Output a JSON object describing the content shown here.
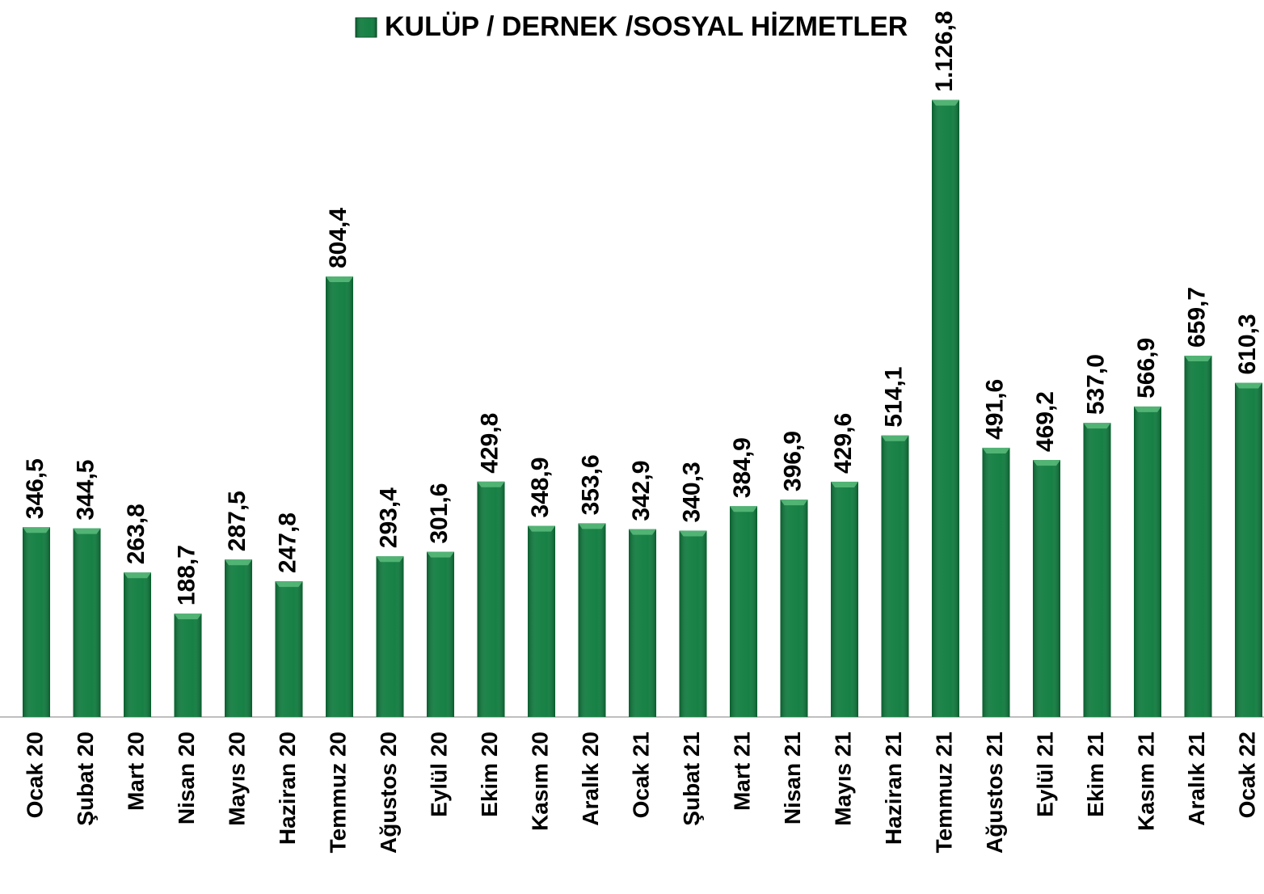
{
  "chart_data": {
    "type": "bar",
    "categories": [
      "Ocak 20",
      "Şubat 20",
      "Mart 20",
      "Nisan 20",
      "Mayıs 20",
      "Haziran 20",
      "Temmuz 20",
      "Ağustos 20",
      "Eylül 20",
      "Ekim 20",
      "Kasım 20",
      "Aralık 20",
      "Ocak 21",
      "Şubat 21",
      "Mart 21",
      "Nisan 21",
      "Mayıs 21",
      "Haziran 21",
      "Temmuz 21",
      "Ağustos 21",
      "Eylül 21",
      "Ekim 21",
      "Kasım 21",
      "Aralık 21",
      "Ocak 22"
    ],
    "series": [
      {
        "name": "KULÜP / DERNEK /SOSYAL HİZMETLER",
        "color": "#0b7a3b",
        "values": [
          346.5,
          344.5,
          263.8,
          188.7,
          287.5,
          247.8,
          804.4,
          293.4,
          301.6,
          429.8,
          348.9,
          353.6,
          342.9,
          340.3,
          384.9,
          396.9,
          429.6,
          514.1,
          1126.8,
          491.6,
          469.2,
          537.0,
          566.9,
          659.7,
          610.3
        ],
        "value_labels": [
          "346,5",
          "344,5",
          "263,8",
          "188,7",
          "287,5",
          "247,8",
          "804,4",
          "293,4",
          "301,6",
          "429,8",
          "348,9",
          "353,6",
          "342,9",
          "340,3",
          "384,9",
          "396,9",
          "429,6",
          "514,1",
          "1.126,8",
          "491,6",
          "469,2",
          "537,0",
          "566,9",
          "659,7",
          "610,3"
        ]
      }
    ],
    "ylim": [
      0,
      1200
    ],
    "legend": "top"
  }
}
